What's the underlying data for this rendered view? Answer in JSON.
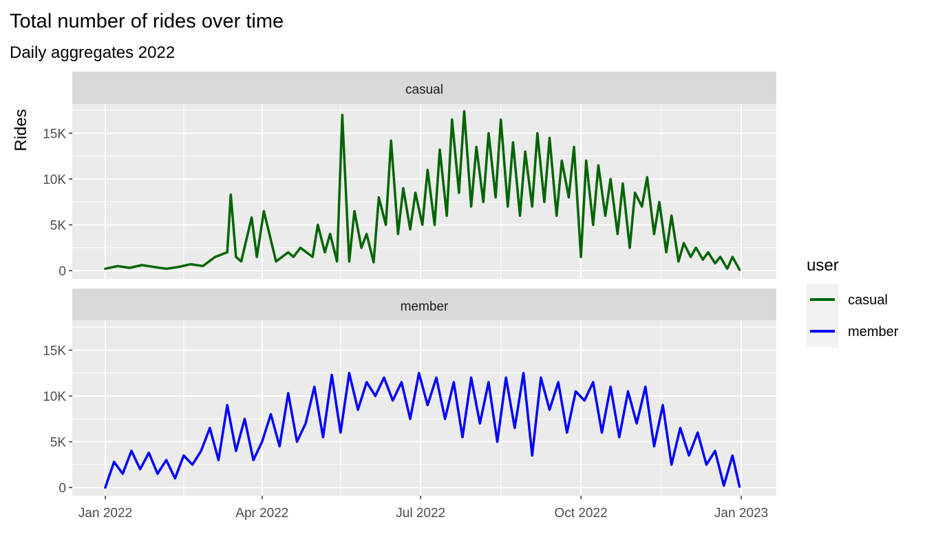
{
  "chart_data": {
    "type": "line",
    "title": "Total number of rides over time",
    "subtitle": "Daily aggregates 2022",
    "xlabel": "",
    "ylabel": "Rides",
    "x_ticks": [
      "Jan 2022",
      "Apr 2022",
      "Jul 2022",
      "Oct 2022",
      "Jan 2023"
    ],
    "x_range": [
      "2022-01-01",
      "2023-01-01"
    ],
    "y_ticks": [
      "0",
      "5K",
      "10K",
      "15K"
    ],
    "ylim": [
      0,
      18000
    ],
    "grid": true,
    "legend": {
      "title": "user",
      "position": "right"
    },
    "facets": [
      "casual",
      "member"
    ],
    "series": [
      {
        "name": "casual",
        "color": "#006400",
        "x": [
          "2022-01-01",
          "2022-01-08",
          "2022-01-15",
          "2022-01-22",
          "2022-01-29",
          "2022-02-05",
          "2022-02-12",
          "2022-02-19",
          "2022-02-26",
          "2022-03-05",
          "2022-03-12",
          "2022-03-14",
          "2022-03-17",
          "2022-03-20",
          "2022-03-26",
          "2022-03-29",
          "2022-04-02",
          "2022-04-09",
          "2022-04-16",
          "2022-04-19",
          "2022-04-23",
          "2022-04-30",
          "2022-05-03",
          "2022-05-07",
          "2022-05-10",
          "2022-05-14",
          "2022-05-17",
          "2022-05-21",
          "2022-05-24",
          "2022-05-28",
          "2022-05-31",
          "2022-06-04",
          "2022-06-07",
          "2022-06-11",
          "2022-06-14",
          "2022-06-18",
          "2022-06-21",
          "2022-06-25",
          "2022-06-28",
          "2022-07-02",
          "2022-07-05",
          "2022-07-09",
          "2022-07-12",
          "2022-07-16",
          "2022-07-19",
          "2022-07-23",
          "2022-07-26",
          "2022-07-30",
          "2022-08-02",
          "2022-08-06",
          "2022-08-09",
          "2022-08-13",
          "2022-08-16",
          "2022-08-20",
          "2022-08-23",
          "2022-08-27",
          "2022-08-30",
          "2022-09-03",
          "2022-09-06",
          "2022-09-10",
          "2022-09-13",
          "2022-09-17",
          "2022-09-20",
          "2022-09-24",
          "2022-09-27",
          "2022-10-01",
          "2022-10-04",
          "2022-10-08",
          "2022-10-11",
          "2022-10-15",
          "2022-10-18",
          "2022-10-22",
          "2022-10-25",
          "2022-10-29",
          "2022-11-01",
          "2022-11-05",
          "2022-11-08",
          "2022-11-12",
          "2022-11-15",
          "2022-11-19",
          "2022-11-22",
          "2022-11-26",
          "2022-11-29",
          "2022-12-03",
          "2022-12-06",
          "2022-12-10",
          "2022-12-13",
          "2022-12-17",
          "2022-12-20",
          "2022-12-24",
          "2022-12-27",
          "2022-12-31"
        ],
        "values": [
          200,
          500,
          300,
          600,
          400,
          200,
          400,
          700,
          500,
          1500,
          2000,
          8300,
          1500,
          1000,
          5800,
          1500,
          6500,
          1000,
          2000,
          1500,
          2500,
          1500,
          5000,
          2000,
          4000,
          1000,
          17000,
          1000,
          6500,
          2500,
          4000,
          900,
          8000,
          5000,
          14200,
          4000,
          9000,
          4500,
          8500,
          5000,
          11000,
          5000,
          13200,
          6000,
          16500,
          8500,
          17400,
          7000,
          13500,
          7500,
          15000,
          8000,
          16500,
          7000,
          14000,
          6000,
          13000,
          7000,
          15000,
          7500,
          14500,
          6000,
          12000,
          8000,
          13500,
          1500,
          12000,
          5000,
          11500,
          6000,
          10000,
          4000,
          9500,
          2500,
          8500,
          7000,
          10200,
          4000,
          7500,
          2000,
          6000,
          1000,
          3000,
          1500,
          2500,
          1200,
          2000,
          800,
          1500,
          200,
          1500,
          100
        ]
      },
      {
        "name": "member",
        "color": "#0000ff",
        "x": [
          "2022-01-01",
          "2022-01-06",
          "2022-01-11",
          "2022-01-16",
          "2022-01-21",
          "2022-01-26",
          "2022-01-31",
          "2022-02-05",
          "2022-02-10",
          "2022-02-15",
          "2022-02-20",
          "2022-02-25",
          "2022-03-02",
          "2022-03-07",
          "2022-03-12",
          "2022-03-17",
          "2022-03-22",
          "2022-03-27",
          "2022-04-01",
          "2022-04-06",
          "2022-04-11",
          "2022-04-16",
          "2022-04-21",
          "2022-04-26",
          "2022-05-01",
          "2022-05-06",
          "2022-05-11",
          "2022-05-16",
          "2022-05-21",
          "2022-05-26",
          "2022-05-31",
          "2022-06-05",
          "2022-06-10",
          "2022-06-15",
          "2022-06-20",
          "2022-06-25",
          "2022-06-30",
          "2022-07-05",
          "2022-07-10",
          "2022-07-15",
          "2022-07-20",
          "2022-07-25",
          "2022-07-30",
          "2022-08-04",
          "2022-08-09",
          "2022-08-14",
          "2022-08-19",
          "2022-08-24",
          "2022-08-29",
          "2022-09-03",
          "2022-09-08",
          "2022-09-13",
          "2022-09-18",
          "2022-09-23",
          "2022-09-28",
          "2022-10-03",
          "2022-10-08",
          "2022-10-13",
          "2022-10-18",
          "2022-10-23",
          "2022-10-28",
          "2022-11-02",
          "2022-11-07",
          "2022-11-12",
          "2022-11-17",
          "2022-11-22",
          "2022-11-27",
          "2022-12-02",
          "2022-12-07",
          "2022-12-12",
          "2022-12-17",
          "2022-12-22",
          "2022-12-27",
          "2022-12-31"
        ],
        "values": [
          0,
          2800,
          1500,
          4000,
          2000,
          3800,
          1500,
          3000,
          1000,
          3500,
          2500,
          4000,
          6500,
          3000,
          9000,
          4000,
          7500,
          3000,
          5000,
          8000,
          4500,
          10300,
          5000,
          7000,
          11000,
          5500,
          12300,
          6000,
          12500,
          8500,
          11500,
          10000,
          12000,
          9500,
          11500,
          7500,
          12500,
          9000,
          12000,
          7500,
          11500,
          5500,
          12000,
          7000,
          11500,
          5000,
          12000,
          6500,
          12500,
          3500,
          12000,
          8500,
          11500,
          6000,
          10500,
          9500,
          11500,
          6000,
          11000,
          5500,
          10500,
          7000,
          11000,
          4500,
          9000,
          2500,
          6500,
          3500,
          6000,
          2500,
          4000,
          200,
          3500,
          100
        ]
      }
    ]
  }
}
